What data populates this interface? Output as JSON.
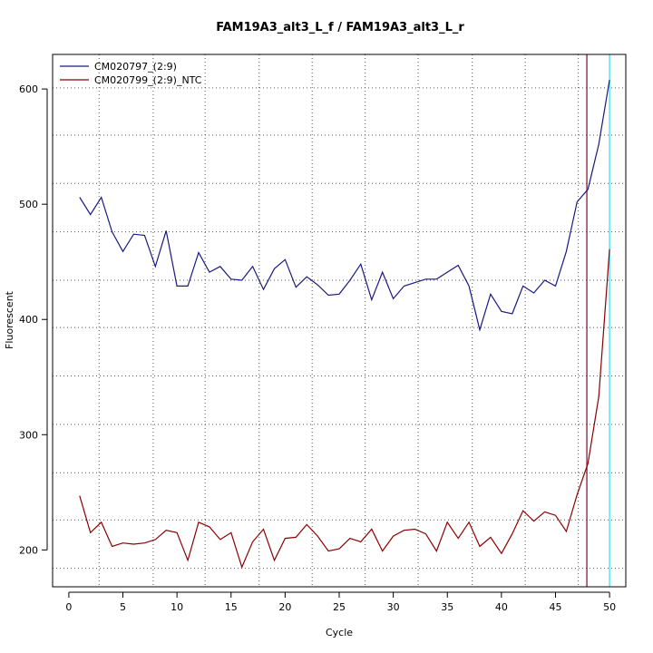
{
  "chart_data": {
    "type": "line",
    "title": "FAM19A3_alt3_L_f / FAM19A3_alt3_L_r",
    "xlabel": "Cycle",
    "ylabel": "Fluorescent",
    "xlim": [
      -1.5,
      51.5
    ],
    "ylim": [
      168,
      630
    ],
    "x_ticks": [
      0,
      5,
      10,
      15,
      20,
      25,
      30,
      35,
      40,
      45,
      50
    ],
    "y_ticks": [
      200,
      300,
      400,
      500,
      600
    ],
    "x_grid": [
      2.8,
      7.8,
      12.6,
      17.6,
      22.5,
      27.4,
      32.3,
      37.3,
      42.2,
      47.1
    ],
    "y_grid": [
      184,
      226,
      267,
      309,
      351,
      393,
      434,
      476,
      518,
      560,
      601
    ],
    "grid": true,
    "legend_position": "top-left",
    "series": [
      {
        "name": "CM020797_(2:9)",
        "color": "#1a1a80",
        "x": [
          1,
          2,
          3,
          4,
          5,
          6,
          7,
          8,
          9,
          10,
          11,
          12,
          13,
          14,
          15,
          16,
          17,
          18,
          19,
          20,
          21,
          22,
          23,
          24,
          25,
          26,
          27,
          28,
          29,
          30,
          31,
          32,
          33,
          34,
          35,
          36,
          37,
          38,
          39,
          40,
          41,
          42,
          43,
          44,
          45,
          46,
          47,
          48,
          49,
          50
        ],
        "values": [
          506,
          491,
          506,
          476,
          459,
          474,
          473,
          446,
          477,
          429,
          429,
          458,
          441,
          446,
          435,
          434,
          446,
          426,
          444,
          452,
          428,
          437,
          430,
          421,
          422,
          434,
          448,
          417,
          441,
          418,
          429,
          432,
          435,
          435,
          441,
          447,
          429,
          391,
          422,
          407,
          405,
          429,
          423,
          434,
          429,
          459,
          502,
          513,
          552,
          608
        ]
      },
      {
        "name": "CM020799_(2:9)_NTC",
        "color": "#8b0000",
        "x": [
          1,
          2,
          3,
          4,
          5,
          6,
          7,
          8,
          9,
          10,
          11,
          12,
          13,
          14,
          15,
          16,
          17,
          18,
          19,
          20,
          21,
          22,
          23,
          24,
          25,
          26,
          27,
          28,
          29,
          30,
          31,
          32,
          33,
          34,
          35,
          36,
          37,
          38,
          39,
          40,
          41,
          42,
          43,
          44,
          45,
          46,
          47,
          48,
          49,
          50
        ],
        "values": [
          247,
          215,
          224,
          203,
          206,
          205,
          206,
          209,
          217,
          215,
          191,
          224,
          220,
          209,
          215,
          185,
          207,
          218,
          191,
          210,
          211,
          222,
          212,
          199,
          201,
          210,
          207,
          218,
          199,
          212,
          217,
          218,
          214,
          199,
          224,
          210,
          224,
          203,
          211,
          197,
          214,
          234,
          225,
          233,
          230,
          216,
          248,
          275,
          333,
          461
        ]
      }
    ],
    "vlines": [
      {
        "x": 47.9,
        "color": "#8b1a3a"
      },
      {
        "x": 50.0,
        "color": "#40e0f0"
      }
    ]
  }
}
